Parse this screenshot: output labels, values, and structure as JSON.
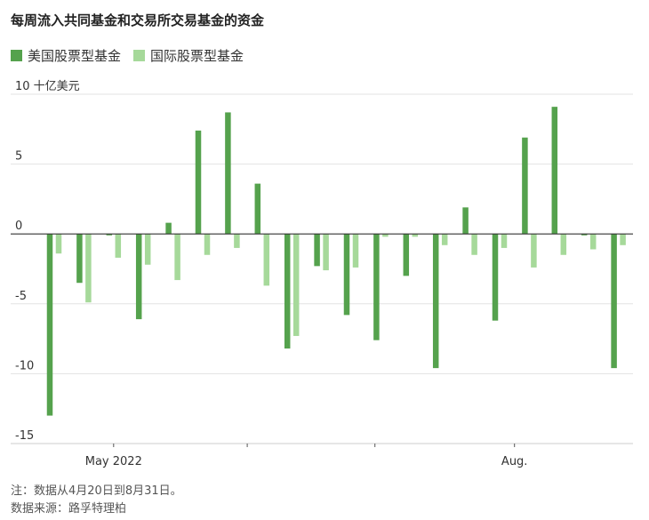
{
  "title": "每周流入共同基金和交易所交易基金的资金",
  "legend": [
    {
      "label": "美国股票型基金",
      "color": "#55a24d"
    },
    {
      "label": "国际股票型基金",
      "color": "#a6d99a"
    }
  ],
  "footnote": "注：数据从4月20日到8月31日。",
  "source": "数据来源：路孚特理柏",
  "chart_data": {
    "type": "bar",
    "ylabel": "10 十亿美元",
    "ylim": [
      -15,
      10
    ],
    "yticks": [
      {
        "value": 10,
        "label": "10 十亿美元"
      },
      {
        "value": 5,
        "label": "5"
      },
      {
        "value": 0,
        "label": "0"
      },
      {
        "value": -5,
        "label": "-5"
      },
      {
        "value": -10,
        "label": "-10"
      },
      {
        "value": -15,
        "label": "-15"
      }
    ],
    "xtick_labels": [
      {
        "after_week": 2.0,
        "label": "May 2022"
      },
      {
        "after_week": 6.5,
        "label": ""
      },
      {
        "after_week": 10.8,
        "label": ""
      },
      {
        "after_week": 15.5,
        "label": "Aug."
      }
    ],
    "grid": true,
    "legend_position": "top-left",
    "series": [
      {
        "name": "美国股票型基金",
        "color": "#55a24d",
        "values": [
          -13.0,
          -3.5,
          -0.1,
          -6.1,
          0.8,
          7.4,
          8.7,
          3.6,
          -8.2,
          -2.3,
          -5.8,
          -7.6,
          -3.0,
          -9.6,
          1.9,
          -6.2,
          6.9,
          9.1,
          -0.1,
          -9.6
        ]
      },
      {
        "name": "国际股票型基金",
        "color": "#a6d99a",
        "values": [
          -1.4,
          -4.9,
          -1.7,
          -2.2,
          -3.3,
          -1.5,
          -1.0,
          -3.7,
          -7.3,
          -2.6,
          -2.4,
          -0.2,
          -0.2,
          -0.8,
          -1.5,
          -1.0,
          -2.4,
          -1.5,
          -1.1,
          -0.8
        ]
      }
    ]
  }
}
